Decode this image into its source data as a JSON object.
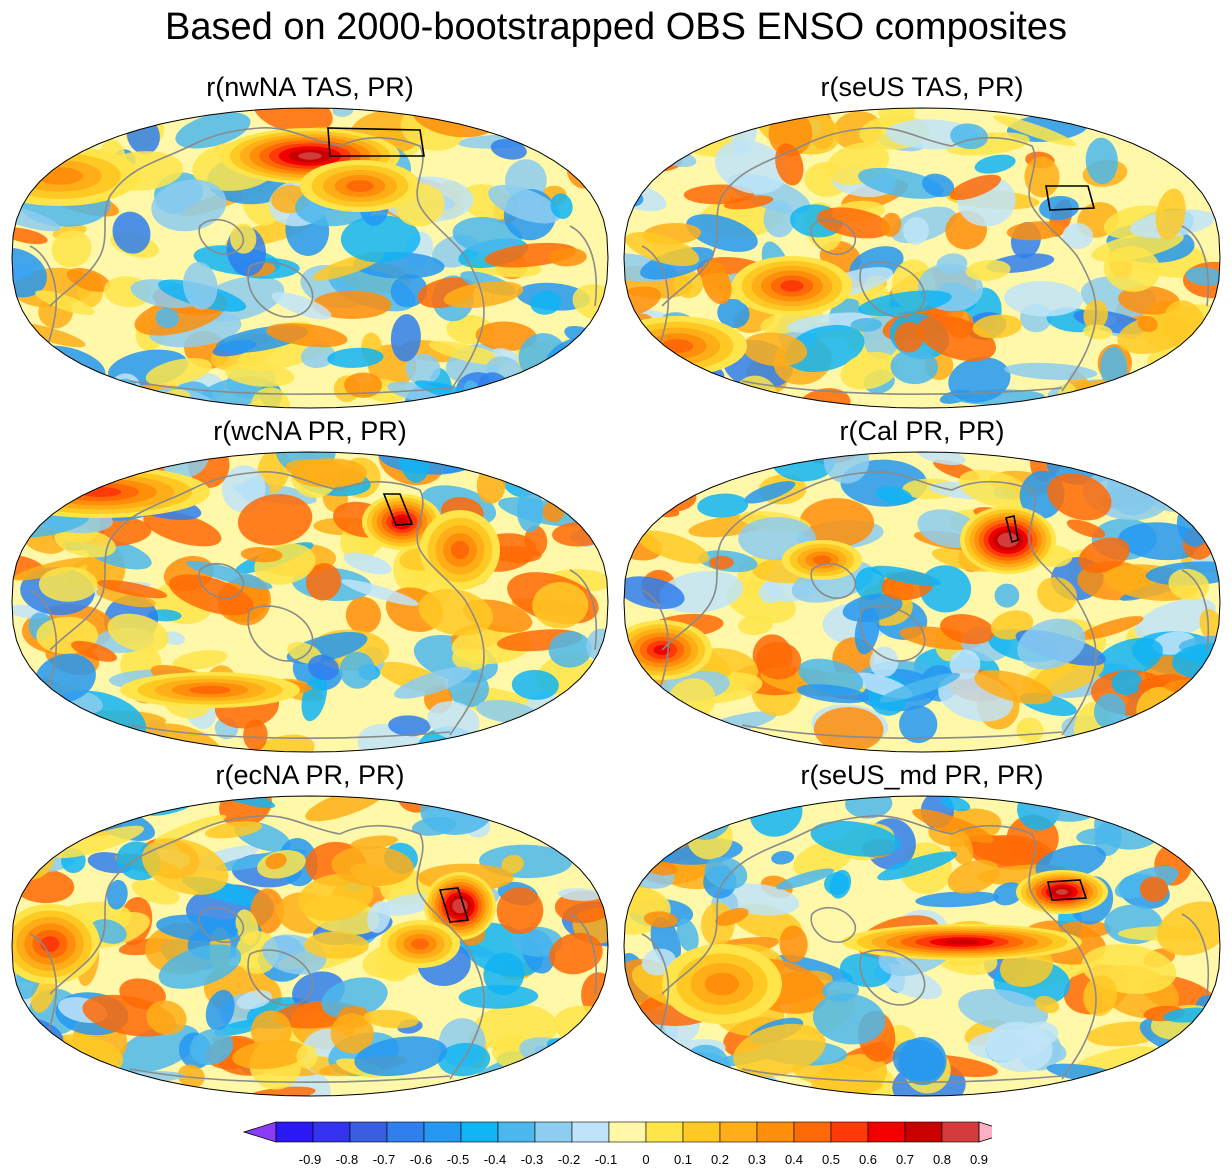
{
  "title": "Based on 2000-bootstrapped OBS ENSO composites",
  "colors": {
    "coast": "#8a8a8a",
    "outline": "#000000",
    "levels": [
      "#8b3cf6",
      "#2a18f5",
      "#3434f0",
      "#3a5ee0",
      "#2f7fef",
      "#2598f2",
      "#11b4f5",
      "#4bb7ec",
      "#8ccdf0",
      "#bfe4f8",
      "#fff8a8",
      "#ffe54a",
      "#ffc924",
      "#ffae18",
      "#ff8e0a",
      "#ff6a06",
      "#ff3a08",
      "#f20000",
      "#c80000",
      "#d43c3c",
      "#ffb0c4"
    ]
  },
  "chart_data": {
    "type": "heatmap",
    "projection": "Robinson, Pacific-centered global maps",
    "panels": [
      {
        "title": "r(nwNA TAS, PR)",
        "seed": 11
      },
      {
        "title": "r(seUS TAS, PR)",
        "seed": 23
      },
      {
        "title": "r(wcNA PR, PR)",
        "seed": 37
      },
      {
        "title": "r(Cal PR, PR)",
        "seed": 41
      },
      {
        "title": "r(ecNA PR, PR)",
        "seed": 53
      },
      {
        "title": "r(seUS_md PR, PR)",
        "seed": 67
      }
    ],
    "colorbar": {
      "levels": [
        -0.9,
        -0.8,
        -0.7,
        -0.6,
        -0.5,
        -0.4,
        -0.3,
        -0.2,
        -0.1,
        0,
        0.1,
        0.2,
        0.3,
        0.4,
        0.5,
        0.6,
        0.7,
        0.8,
        0.9
      ],
      "labels": [
        "-0.9",
        "-0.8",
        "-0.7",
        "-0.6",
        "-0.5",
        "-0.4",
        "-0.3",
        "-0.2",
        "-0.1",
        "0",
        "0.1",
        "0.2",
        "0.3",
        "0.4",
        "0.5",
        "0.6",
        "0.7",
        "0.8",
        "0.9"
      ],
      "end_arrows": true
    }
  }
}
